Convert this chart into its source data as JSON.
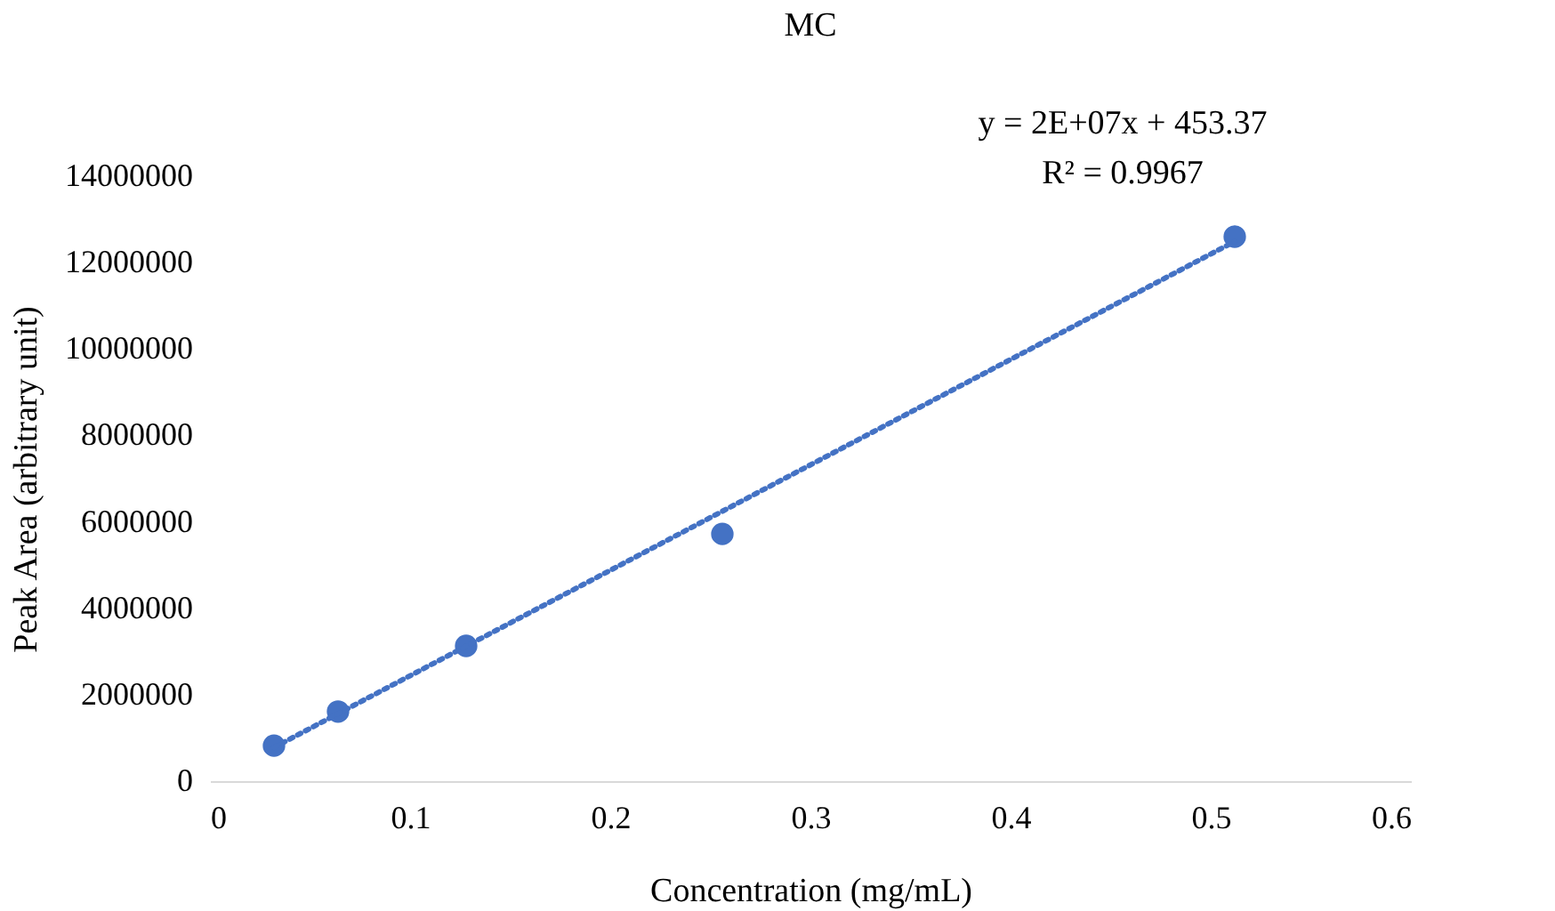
{
  "chart_data": {
    "type": "scatter",
    "title": "MC",
    "xlabel": "Concentration (mg/mL)",
    "ylabel": "Peak Area (arbitrary unit)",
    "xlim": [
      0,
      0.6
    ],
    "xticks": [
      0,
      0.1,
      0.2,
      0.3,
      0.4,
      0.5,
      0.6
    ],
    "ylim": [
      0,
      14000000
    ],
    "yticks": [
      0,
      2000000,
      4000000,
      6000000,
      8000000,
      10000000,
      12000000,
      14000000
    ],
    "grid": false,
    "annotations": [
      "y = 2E+07x + 453.37",
      "R² = 0.9967"
    ],
    "series": [
      {
        "color": "#4472c4",
        "marker": "circle",
        "x": [
          0.032,
          0.064,
          0.128,
          0.256,
          0.512
        ],
        "values": [
          820000,
          1610000,
          3130000,
          5720000,
          12600000
        ]
      },
      {
        "type": "line",
        "color": "#4472c4",
        "line_style": "dotted",
        "x": [
          0.032,
          0.512
        ],
        "values": [
          780000,
          12490000
        ]
      }
    ]
  }
}
